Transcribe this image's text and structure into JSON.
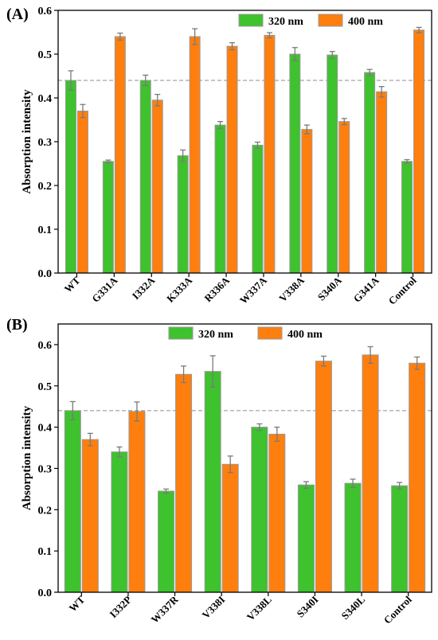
{
  "figure": {
    "colors": {
      "s320": "#3ec22e",
      "s400": "#ff7f0e",
      "bar_edge": "#9a9a9a",
      "error": "#7a7a7a",
      "refline": "#8c8c8c"
    }
  },
  "chart_data": [
    {
      "panel_label": "(A)",
      "type": "bar",
      "ylabel": "Absorption intensity",
      "ylim": [
        0,
        0.6
      ],
      "yticks": [
        "0.0",
        "0.1",
        "0.2",
        "0.3",
        "0.4",
        "0.5",
        "0.6"
      ],
      "categories": [
        "WT",
        "G331A",
        "I332A",
        "K333A",
        "R336A",
        "W337A",
        "V338A",
        "S340A",
        "G341A",
        "Control"
      ],
      "series": [
        {
          "name": "320 nm",
          "values": [
            0.44,
            0.255,
            0.44,
            0.268,
            0.338,
            0.292,
            0.5,
            0.498,
            0.458,
            0.255
          ],
          "errors": [
            0.022,
            0.003,
            0.012,
            0.013,
            0.008,
            0.007,
            0.015,
            0.008,
            0.007,
            0.004
          ]
        },
        {
          "name": "400 nm",
          "values": [
            0.37,
            0.54,
            0.395,
            0.54,
            0.518,
            0.543,
            0.328,
            0.346,
            0.414,
            0.555
          ],
          "errors": [
            0.015,
            0.008,
            0.013,
            0.018,
            0.008,
            0.006,
            0.01,
            0.007,
            0.012,
            0.006
          ]
        }
      ],
      "reference_line": 0.44,
      "legend_position": "top-right"
    },
    {
      "panel_label": "(B)",
      "type": "bar",
      "ylabel": "Absorption intensity",
      "ylim": [
        0,
        0.65
      ],
      "yticks": [
        "0.0",
        "0.1",
        "0.2",
        "0.3",
        "0.4",
        "0.5",
        "0.6"
      ],
      "categories": [
        "WT",
        "I332P",
        "W337R",
        "V338I",
        "V338L",
        "S340I",
        "S340L",
        "Control"
      ],
      "series": [
        {
          "name": "320 nm",
          "values": [
            0.44,
            0.34,
            0.245,
            0.535,
            0.4,
            0.26,
            0.264,
            0.258
          ],
          "errors": [
            0.022,
            0.012,
            0.005,
            0.038,
            0.008,
            0.008,
            0.01,
            0.008
          ]
        },
        {
          "name": "400 nm",
          "values": [
            0.37,
            0.438,
            0.528,
            0.31,
            0.383,
            0.56,
            0.575,
            0.555
          ],
          "errors": [
            0.015,
            0.023,
            0.02,
            0.02,
            0.017,
            0.012,
            0.02,
            0.015
          ]
        }
      ],
      "reference_line": 0.44,
      "legend_position": "top-center"
    }
  ]
}
